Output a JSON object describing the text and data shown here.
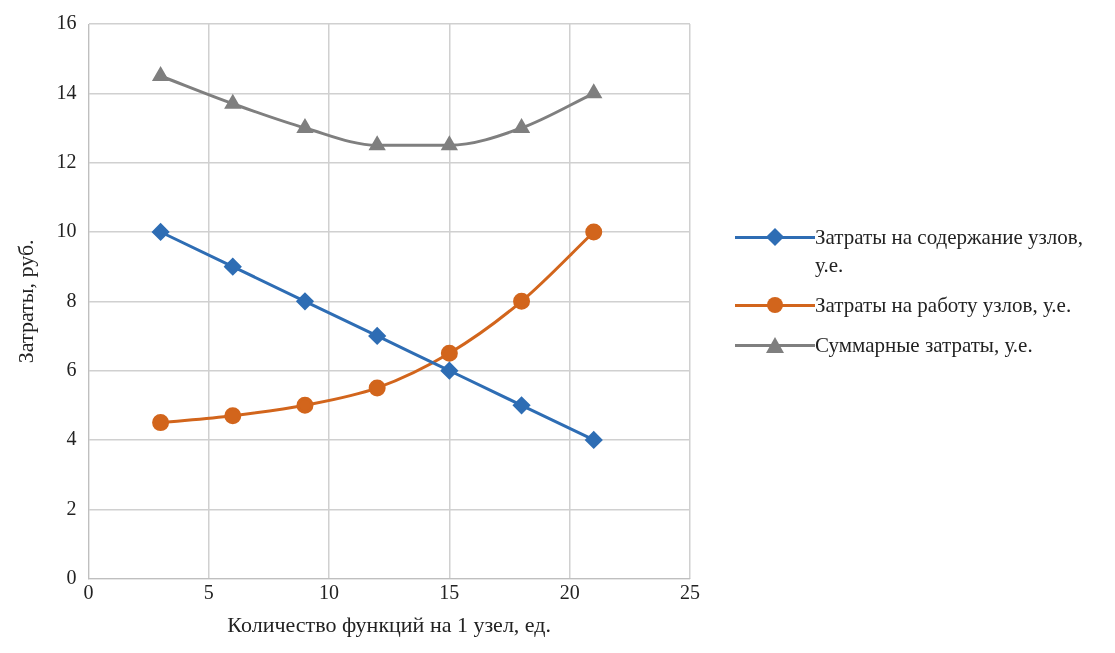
{
  "chart_data": {
    "type": "line",
    "xlabel": "Количество функций на 1 узел, ед.",
    "ylabel": "Затраты, руб.",
    "x": [
      3,
      6,
      9,
      12,
      15,
      18,
      21
    ],
    "series": [
      {
        "name": "Затраты на содержание узлов, у.е.",
        "color": "#2e6db4",
        "marker": "diamond",
        "values": [
          10,
          9,
          8,
          7,
          6,
          5,
          4
        ]
      },
      {
        "name": "Затраты на работу узлов,  у.е.",
        "color": "#d2651c",
        "marker": "circle",
        "values": [
          4.5,
          4.7,
          5,
          5.5,
          6.5,
          8,
          10
        ]
      },
      {
        "name": "Суммарные затраты, у.е.",
        "color": "#7f7f7f",
        "marker": "triangle",
        "values": [
          14.5,
          13.7,
          13,
          12.5,
          12.5,
          13,
          14
        ]
      }
    ],
    "xlim": [
      0,
      25
    ],
    "xticks": [
      0,
      5,
      10,
      15,
      20,
      25
    ],
    "ylim": [
      0,
      16
    ],
    "yticks": [
      0,
      2,
      4,
      6,
      8,
      10,
      12,
      14,
      16
    ],
    "grid": true,
    "legend": "right"
  }
}
